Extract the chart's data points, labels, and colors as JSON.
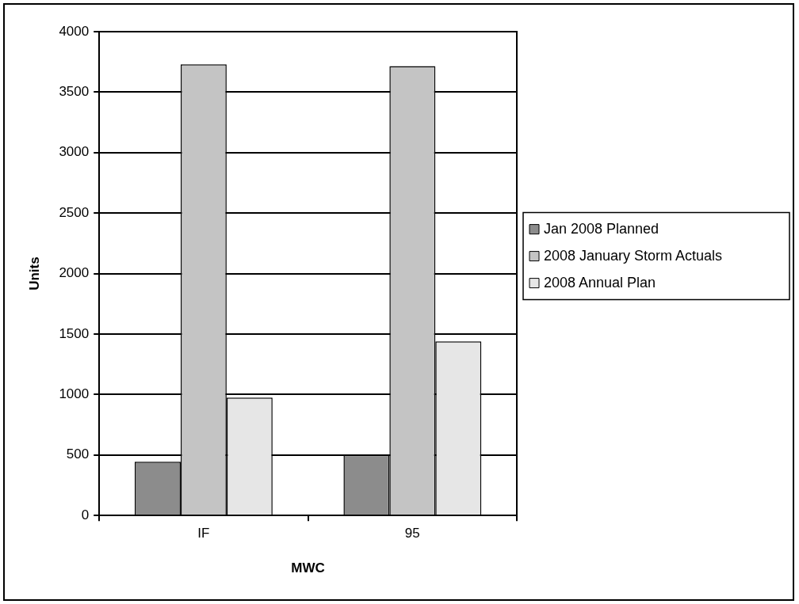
{
  "chart_data": {
    "type": "bar",
    "xlabel": "MWC",
    "ylabel": "Units",
    "categories": [
      "IF",
      "95"
    ],
    "series": [
      {
        "name": "Jan 2008 Planned",
        "color": "#8c8c8c",
        "values": [
          445,
          500
        ]
      },
      {
        "name": "2008 January Storm Actuals",
        "color": "#c4c4c4",
        "values": [
          3730,
          3715
        ]
      },
      {
        "name": "2008 Annual Plan",
        "color": "#e6e6e6",
        "values": [
          975,
          1440
        ]
      }
    ],
    "ylim": [
      0,
      4000
    ],
    "yticks": [
      0,
      500,
      1000,
      1500,
      2000,
      2500,
      3000,
      3500,
      4000
    ],
    "grid": "y",
    "legend": "right"
  }
}
